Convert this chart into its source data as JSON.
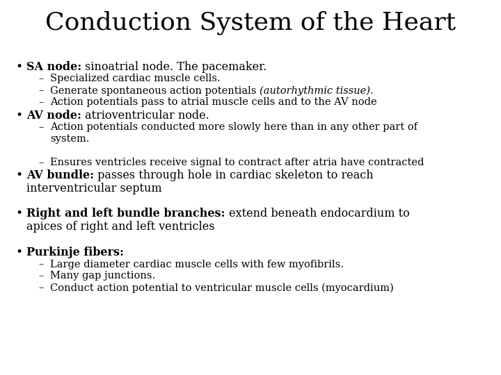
{
  "title": "Conduction System of the Heart",
  "background_color": "#ffffff",
  "text_color": "#000000",
  "title_fontsize": 26,
  "body_fontsize": 11.5,
  "sub_fontsize": 10.5,
  "font_family": "DejaVu Serif",
  "figsize": [
    7.2,
    5.4
  ],
  "dpi": 100,
  "content": [
    {
      "bold_part": "SA node:",
      "normal_part": " sinoatrial node. The pacemaker.",
      "sub": [
        {
          "normal": "Specialized cardiac muscle cells.",
          "italic": null
        },
        {
          "normal": "Generate spontaneous action potentials ",
          "italic": "(autorhythmic tissue)."
        },
        {
          "normal": "Action potentials pass to atrial muscle cells and to the AV node",
          "italic": null
        }
      ]
    },
    {
      "bold_part": "AV node:",
      "normal_part": " atrioventricular node.",
      "sub": [
        {
          "normal": "Action potentials conducted more slowly here than in any other part of\nsystem.",
          "italic": null
        },
        {
          "normal": "Ensures ventricles receive signal to contract after atria have contracted",
          "italic": null
        }
      ]
    },
    {
      "bold_part": "AV bundle:",
      "normal_part": " passes through hole in cardiac skeleton to reach\ninterventricular septum",
      "sub": []
    },
    {
      "bold_part": "Right and left bundle branches:",
      "normal_part": " extend beneath endocardium to\napices of right and left ventricles",
      "sub": []
    },
    {
      "bold_part": "Purkinje fibers:",
      "normal_part": "",
      "sub": [
        {
          "normal": "Large diameter cardiac muscle cells with few myofibrils.",
          "italic": null
        },
        {
          "normal": "Many gap junctions.",
          "italic": null
        },
        {
          "normal": "Conduct action potential to ventricular muscle cells (myocardium)",
          "italic": null
        }
      ]
    }
  ]
}
